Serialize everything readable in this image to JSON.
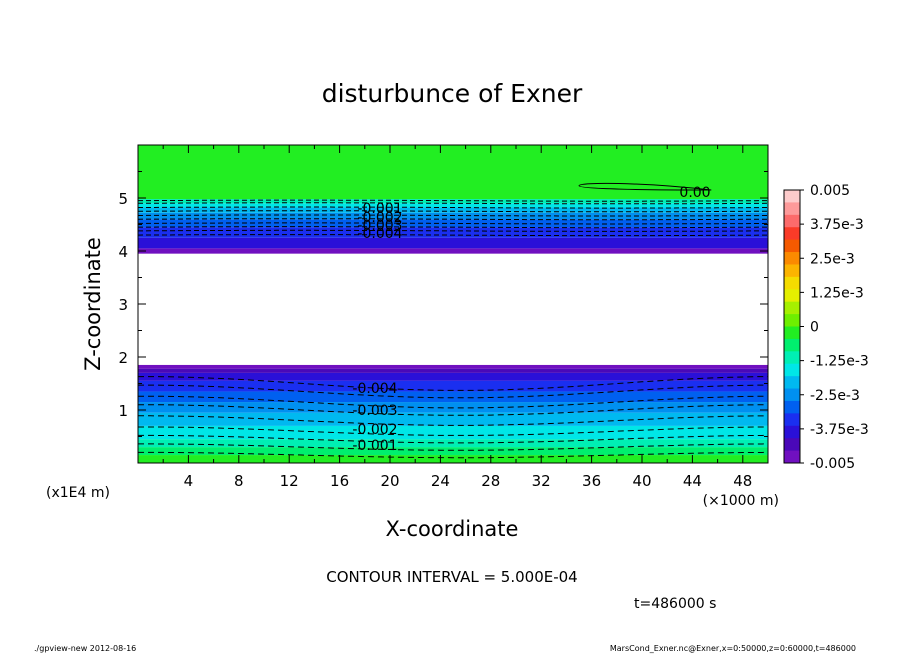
{
  "chart_data": {
    "type": "heatmap",
    "title": "disturbunce of Exner",
    "xlabel": "X-coordinate",
    "ylabel": "Z-coordinate",
    "x_unit": "(×1000 m)",
    "y_unit": "(x1E4 m)",
    "xlim": [
      0,
      50
    ],
    "ylim": [
      0,
      6
    ],
    "xticks": [
      4,
      8,
      12,
      16,
      20,
      24,
      28,
      32,
      36,
      40,
      44,
      48
    ],
    "yticks": [
      1,
      2,
      3,
      4,
      5
    ],
    "contour_interval_text": "CONTOUR INTERVAL = 5.000E-04",
    "time_text": "t=486000 s",
    "lower_region_levels": [
      {
        "label": "-0.001",
        "z": 0.3
      },
      {
        "label": "-0.002",
        "z": 0.6
      },
      {
        "label": "-0.003",
        "z": 1.0
      },
      {
        "label": "-0.004",
        "z": 1.35
      }
    ],
    "upper_region_levels": [
      {
        "label": "-0.001",
        "z": 4.9
      },
      {
        "label": "-0.002",
        "z": 4.7
      },
      {
        "label": "-0.003",
        "z": 4.6
      },
      {
        "label": "-0.004",
        "z": 4.45
      }
    ],
    "zero_contour_label": "0.00",
    "blank_band_z": [
      1.85,
      3.95
    ],
    "colorbar": {
      "range": [
        -0.005,
        0.005
      ],
      "tick_labels": [
        "0.005",
        "3.75e-3",
        "2.5e-3",
        "1.25e-3",
        "0",
        "-1.25e-3",
        "-2.5e-3",
        "-3.75e-3",
        "-0.005"
      ],
      "colors": [
        "#fdcbcb",
        "#fd9a9a",
        "#fc6b6b",
        "#fa3b28",
        "#f55a00",
        "#fb8a00",
        "#fcb400",
        "#f5dc00",
        "#e4ef00",
        "#a6f000",
        "#6eef00",
        "#22ee22",
        "#00ef6e",
        "#00efb4",
        "#00e7e7",
        "#00b9f0",
        "#0090f0",
        "#0060f0",
        "#1a2ff0",
        "#2a10d8",
        "#4a08b8",
        "#7010c0"
      ]
    }
  },
  "footer": {
    "left": "./gpview-new  2012-08-16",
    "right": "MarsCond_Exner.nc@Exner,x=0:50000,z=0:60000,t=486000"
  }
}
